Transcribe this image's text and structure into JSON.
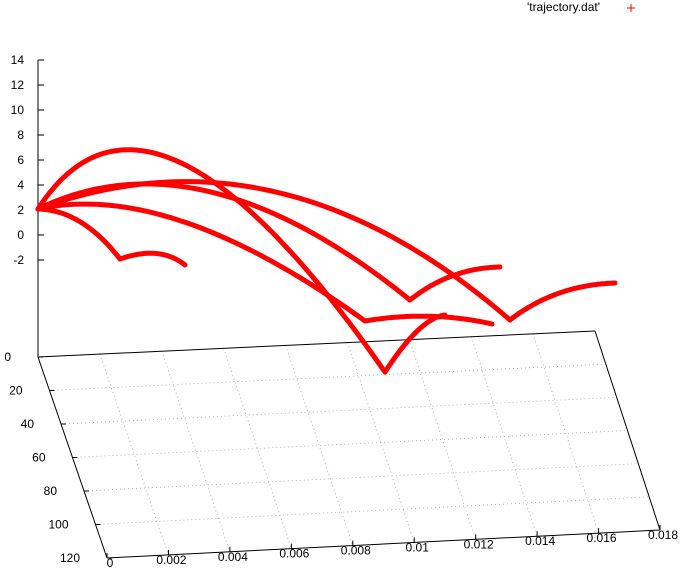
{
  "chart_data": {
    "type": "scatter",
    "title": "",
    "legend": {
      "label": "'trajectory.dat'",
      "marker": "+",
      "color": "#ff0000",
      "placement": "top-right"
    },
    "xlabel": "",
    "ylabel": "",
    "zlabel": "",
    "xlim": [
      0,
      0.018
    ],
    "ylim": [
      0,
      120
    ],
    "zlim": [
      -2,
      14
    ],
    "x_ticks": [
      "0",
      "0.002",
      "0.004",
      "0.006",
      "0.008",
      "0.01",
      "0.012",
      "0.014",
      "0.016",
      "0.018"
    ],
    "y_ticks": [
      "0",
      "20",
      "40",
      "60",
      "80",
      "100",
      "120"
    ],
    "z_ticks": [
      "14",
      "12",
      "10",
      "8",
      "6",
      "4",
      "2",
      "0",
      "-2"
    ],
    "grid": true,
    "series": [
      {
        "name": "'trajectory.dat'",
        "color": "#ff0000",
        "curves": [
          {
            "note": "high arc",
            "z_points": [
              2,
              8.7,
              2
            ]
          },
          {
            "note": "middle arcs",
            "z_points": [
              2,
              5.3,
              2
            ]
          },
          {
            "note": "low arcs",
            "z_points": [
              2,
              -2,
              -2.5
            ]
          }
        ]
      }
    ]
  }
}
